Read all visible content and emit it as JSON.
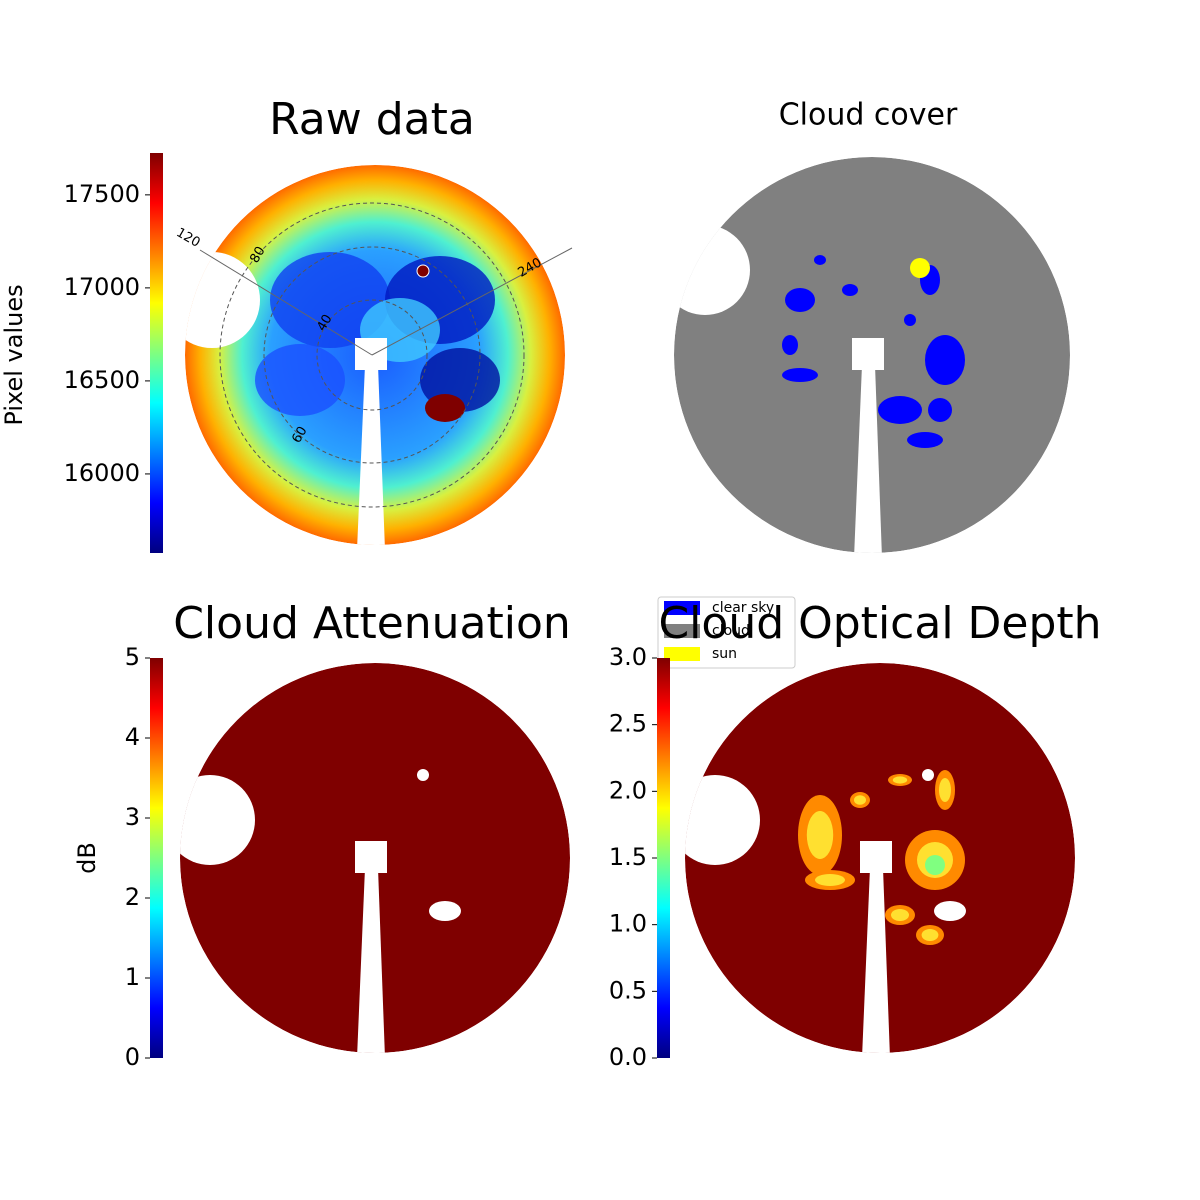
{
  "chart_data": [
    {
      "type": "heatmap",
      "title": "Raw data",
      "colorbar_label": "Pixel values",
      "colormap": "jet",
      "clim": [
        15575,
        17725
      ],
      "cticks": [
        16000,
        16500,
        17000,
        17500
      ],
      "annotations": [
        "120",
        "80",
        "240",
        "40",
        "60"
      ]
    },
    {
      "type": "categorical",
      "title": "Cloud cover",
      "legend": [
        {
          "name": "clear sky",
          "color": "#0000ff"
        },
        {
          "name": "cloud",
          "color": "#808080"
        },
        {
          "name": "sun",
          "color": "#ffff00"
        }
      ]
    },
    {
      "type": "heatmap",
      "title": "Cloud Attenuation",
      "colorbar_label": "dB",
      "colormap": "jet",
      "clim": [
        0,
        5
      ],
      "cticks": [
        0,
        1,
        2,
        3,
        4,
        5
      ]
    },
    {
      "type": "heatmap",
      "title": "Cloud Optical Depth",
      "colormap": "jet",
      "clim": [
        0,
        3
      ],
      "cticks": [
        {
          "value": 0,
          "label": "0.0"
        },
        {
          "value": 0.5,
          "label": "0.5"
        },
        {
          "value": 1,
          "label": "1.0"
        },
        {
          "value": 1.5,
          "label": "1.5"
        },
        {
          "value": 2,
          "label": "2.0"
        },
        {
          "value": 2.5,
          "label": "2.5"
        },
        {
          "value": 3,
          "label": "3.0"
        }
      ]
    }
  ]
}
